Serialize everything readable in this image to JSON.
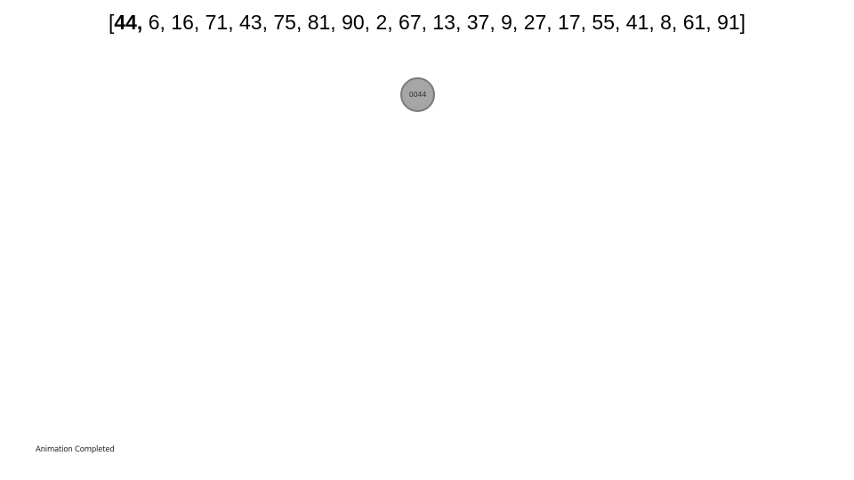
{
  "array": {
    "open_bracket": "[",
    "current": "44,",
    "rest": " 6, 16, 71, 43, 75, 81, 90, 2, 67, 13, 37, 9, 27, 17, 55, 41, 8, 61, 91",
    "close_bracket": "]"
  },
  "tree": {
    "root_label": "0044",
    "node_color": "#a6a6a6"
  },
  "status": {
    "text": "Animation Completed"
  }
}
